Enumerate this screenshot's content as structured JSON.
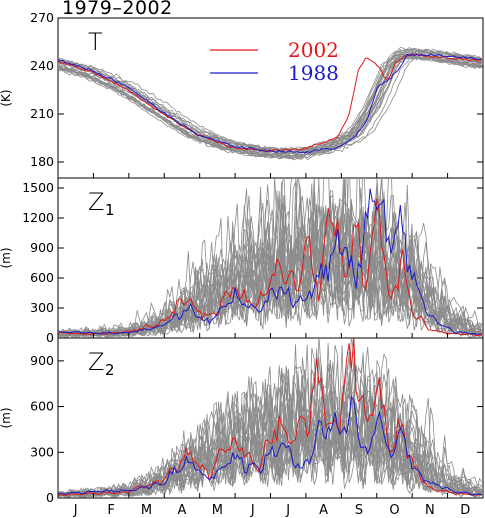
{
  "figure_title": "1979–2002",
  "colors": {
    "climatology": "#8c8c8c",
    "highlight_2002": "#e01818",
    "highlight_1988": "#1a1acc"
  },
  "chart_data": [
    {
      "type": "line",
      "panel_label": "T",
      "panel_sub": "",
      "ylabel": "(K)",
      "xlabel": "",
      "x_categories": [
        "J",
        "F",
        "M",
        "A",
        "M",
        "J",
        "J",
        "A",
        "S",
        "O",
        "N",
        "D"
      ],
      "xlim": [
        0,
        365
      ],
      "ylim": [
        170,
        270
      ],
      "yticks": [
        "180",
        "210",
        "240",
        "270"
      ],
      "legend": [
        {
          "name": "2002",
          "color": "#e01818"
        },
        {
          "name": "1988",
          "color": "#1a1acc"
        }
      ],
      "series": [
        {
          "name": "",
          "color": "#8c8c8c",
          "count": 22,
          "x": [
            0,
            30,
            60,
            90,
            120,
            150,
            180,
            210,
            240,
            260,
            275,
            290,
            300,
            320,
            340,
            365
          ],
          "values": [
            242,
            236,
            226,
            212,
            198,
            190,
            186,
            185,
            190,
            198,
            215,
            240,
            248,
            247,
            245,
            242
          ]
        },
        {
          "name": "2002",
          "color": "#e01818",
          "x": [
            0,
            30,
            60,
            90,
            120,
            150,
            180,
            210,
            240,
            250,
            258,
            265,
            275,
            283,
            290,
            300,
            320,
            340,
            365
          ],
          "values": [
            243,
            236,
            225,
            210,
            197,
            189,
            187,
            188,
            195,
            210,
            237,
            246,
            240,
            230,
            242,
            247,
            246,
            245,
            243
          ]
        },
        {
          "name": "1988",
          "color": "#1a1acc",
          "x": [
            0,
            30,
            60,
            90,
            120,
            150,
            180,
            210,
            240,
            255,
            265,
            275,
            285,
            295,
            300,
            320,
            340,
            365
          ],
          "values": [
            244,
            237,
            227,
            211,
            197,
            190,
            187,
            186,
            189,
            196,
            205,
            228,
            232,
            240,
            247,
            247,
            246,
            244
          ]
        }
      ]
    },
    {
      "type": "line",
      "panel_label": "Z",
      "panel_sub": "1",
      "ylabel": "(m)",
      "xlabel": "",
      "x_categories": [
        "J",
        "F",
        "M",
        "A",
        "M",
        "J",
        "J",
        "A",
        "S",
        "O",
        "N",
        "D"
      ],
      "xlim": [
        0,
        365
      ],
      "ylim": [
        0,
        1600
      ],
      "yticks": [
        "0",
        "300",
        "600",
        "900",
        "1200",
        "1500"
      ],
      "series": [
        {
          "name": "",
          "color": "#8c8c8c",
          "count": 22,
          "x": [
            0,
            30,
            60,
            90,
            120,
            150,
            180,
            210,
            240,
            270,
            300,
            330,
            365
          ],
          "values": [
            40,
            50,
            60,
            150,
            380,
            560,
            700,
            760,
            800,
            780,
            600,
            200,
            40
          ]
        },
        {
          "name": "2002",
          "color": "#e01818",
          "x": [
            0,
            30,
            60,
            90,
            110,
            130,
            150,
            170,
            190,
            205,
            215,
            225,
            235,
            245,
            255,
            265,
            275,
            285,
            295,
            305,
            320,
            340,
            365
          ],
          "values": [
            50,
            40,
            60,
            150,
            400,
            200,
            500,
            300,
            700,
            500,
            1000,
            400,
            1480,
            600,
            1100,
            500,
            1300,
            300,
            800,
            250,
            80,
            40,
            30
          ]
        },
        {
          "name": "1988",
          "color": "#1a1acc",
          "x": [
            0,
            30,
            60,
            90,
            110,
            130,
            150,
            170,
            190,
            210,
            230,
            245,
            255,
            265,
            275,
            285,
            295,
            305,
            320,
            340,
            365
          ],
          "values": [
            60,
            50,
            50,
            120,
            300,
            150,
            450,
            250,
            500,
            350,
            700,
            1000,
            500,
            1200,
            1400,
            900,
            1100,
            600,
            200,
            60,
            40
          ]
        }
      ]
    },
    {
      "type": "line",
      "panel_label": "Z",
      "panel_sub": "2",
      "ylabel": "(m)",
      "xlabel": "",
      "x_categories": [
        "J",
        "F",
        "M",
        "A",
        "M",
        "J",
        "J",
        "A",
        "S",
        "O",
        "N",
        "D"
      ],
      "xlim": [
        0,
        365
      ],
      "ylim": [
        0,
        1050
      ],
      "yticks": [
        "0",
        "300",
        "600",
        "900"
      ],
      "series": [
        {
          "name": "",
          "color": "#8c8c8c",
          "count": 22,
          "x": [
            0,
            30,
            60,
            90,
            120,
            150,
            180,
            210,
            240,
            270,
            300,
            330,
            365
          ],
          "values": [
            20,
            30,
            40,
            100,
            220,
            320,
            380,
            420,
            440,
            420,
            300,
            100,
            30
          ]
        },
        {
          "name": "2002",
          "color": "#e01818",
          "x": [
            0,
            30,
            60,
            90,
            110,
            130,
            150,
            170,
            190,
            200,
            215,
            225,
            235,
            245,
            255,
            265,
            275,
            285,
            295,
            305,
            320,
            340,
            365
          ],
          "values": [
            20,
            30,
            40,
            120,
            300,
            150,
            400,
            200,
            500,
            350,
            550,
            800,
            400,
            650,
            1000,
            450,
            700,
            300,
            500,
            200,
            60,
            30,
            20
          ]
        },
        {
          "name": "1988",
          "color": "#1a1acc",
          "x": [
            0,
            30,
            60,
            90,
            110,
            130,
            150,
            170,
            190,
            210,
            230,
            245,
            255,
            265,
            275,
            285,
            295,
            305,
            320,
            340,
            365
          ],
          "values": [
            30,
            40,
            50,
            100,
            250,
            120,
            280,
            180,
            350,
            200,
            500,
            450,
            600,
            250,
            550,
            300,
            450,
            200,
            100,
            40,
            20
          ]
        }
      ]
    }
  ]
}
